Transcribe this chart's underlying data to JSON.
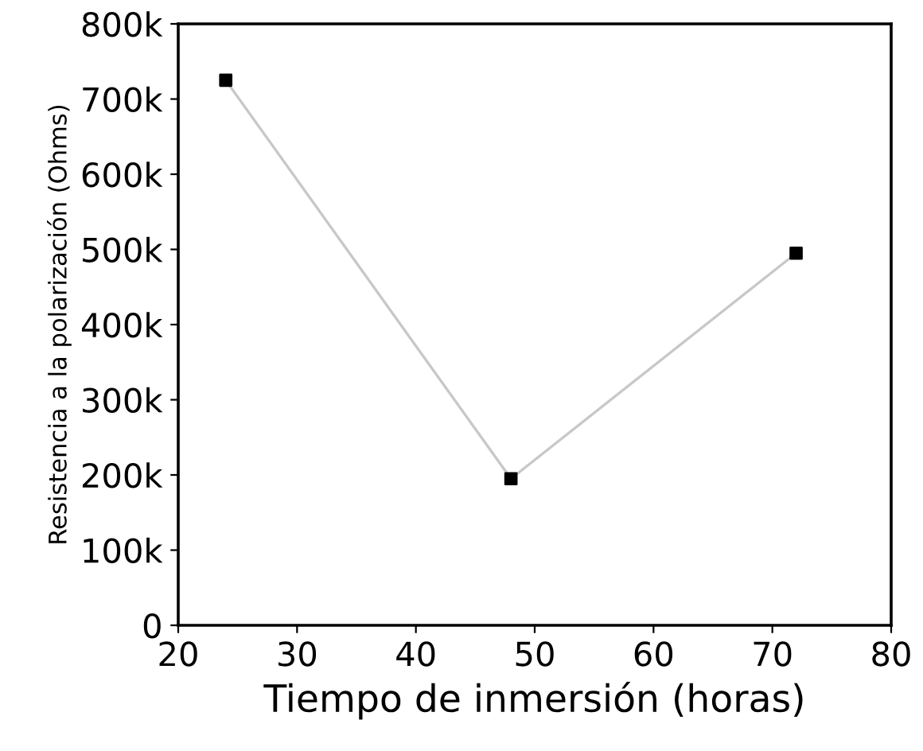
{
  "chart_data": {
    "type": "line",
    "xlabel": "Tiempo de inmersión (horas)",
    "ylabel": "Resistencia a la polarización (Ohms)",
    "x": [
      24,
      48,
      72
    ],
    "series": [
      {
        "color": "#c8c8c8",
        "colors": [
          "#000000",
          "#000000",
          "#000000"
        ],
        "values": [
          725000,
          195000,
          495000
        ]
      }
    ],
    "marker": "square",
    "line_style": "solid",
    "grid": false,
    "legend": false,
    "xlim": [
      20,
      80
    ],
    "xticks": [
      20,
      30,
      40,
      50,
      60,
      70,
      80
    ],
    "ylim": [
      0,
      800000
    ],
    "yticks": [
      {
        "value": 0,
        "label": "0"
      },
      {
        "value": 100000,
        "label": "100k"
      },
      {
        "value": 200000,
        "label": "200k"
      },
      {
        "value": 300000,
        "label": "300k"
      },
      {
        "value": 400000,
        "label": "400k"
      },
      {
        "value": 500000,
        "label": "500k"
      },
      {
        "value": 600000,
        "label": "600k"
      },
      {
        "value": 700000,
        "label": "700k"
      },
      {
        "value": 800000,
        "label": "800k"
      }
    ]
  }
}
